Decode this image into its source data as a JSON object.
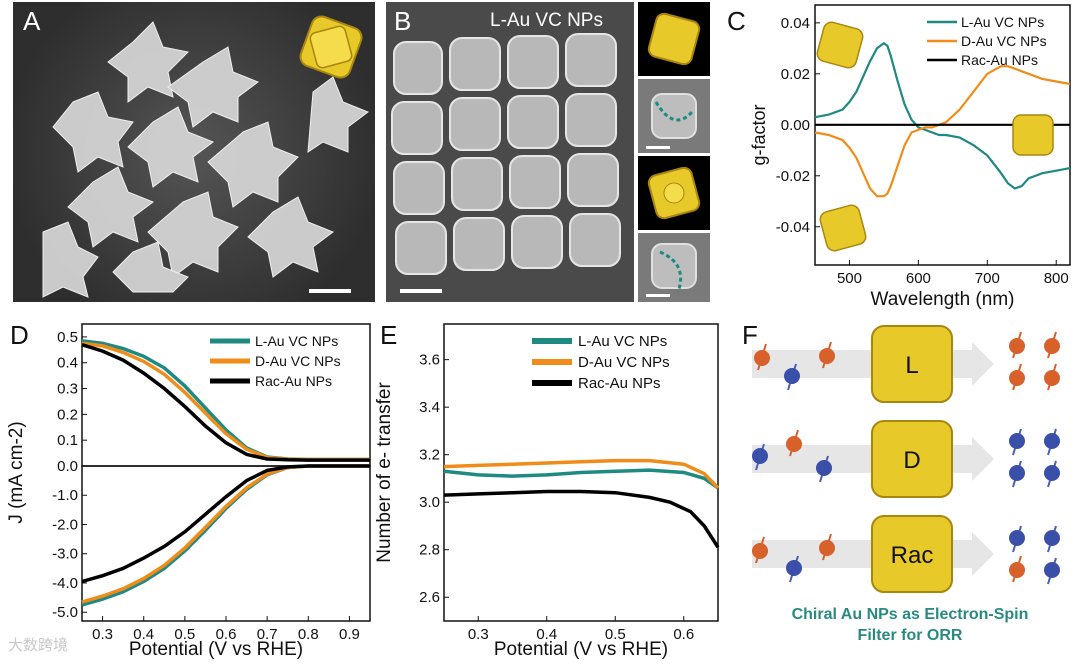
{
  "panels": {
    "A": {
      "label": "A"
    },
    "B": {
      "label": "B",
      "title": "L-Au VC NPs"
    },
    "C": {
      "label": "C"
    },
    "D": {
      "label": "D"
    },
    "E": {
      "label": "E"
    },
    "F": {
      "label": "F"
    }
  },
  "colors": {
    "L": "#1f8a82",
    "D": "#f08c1a",
    "Rac": "#000000",
    "gold": "#e8c92a",
    "caption": "#2a8a80"
  },
  "chart_data": [
    {
      "panel": "C",
      "type": "line",
      "xlabel": "Wavelength (nm)",
      "ylabel": "g-factor",
      "xlim": [
        450,
        820
      ],
      "ylim": [
        -0.055,
        0.047
      ],
      "xticks": [
        500,
        600,
        700,
        800
      ],
      "yticks": [
        0.04,
        0.02,
        0.0,
        -0.02,
        -0.04
      ],
      "ytick_labels": [
        "0.04",
        "0.02",
        "0.00",
        "-0.02",
        "-0.04"
      ],
      "legend": [
        "L-Au VC NPs",
        "D-Au VC NPs",
        "Rac-Au NPs"
      ],
      "series": [
        {
          "name": "L-Au VC NPs",
          "x": [
            450,
            470,
            490,
            500,
            510,
            520,
            530,
            540,
            550,
            555,
            560,
            570,
            580,
            590,
            600,
            610,
            620,
            630,
            640,
            660,
            680,
            700,
            720,
            730,
            740,
            750,
            760,
            780,
            800,
            820
          ],
          "y": [
            0.003,
            0.004,
            0.006,
            0.009,
            0.013,
            0.019,
            0.025,
            0.03,
            0.032,
            0.031,
            0.027,
            0.017,
            0.008,
            0.002,
            -0.001,
            -0.002,
            -0.003,
            -0.004,
            -0.004,
            -0.005,
            -0.008,
            -0.012,
            -0.019,
            -0.023,
            -0.025,
            -0.024,
            -0.021,
            -0.019,
            -0.018,
            -0.017
          ]
        },
        {
          "name": "D-Au VC NPs",
          "x": [
            450,
            470,
            490,
            500,
            510,
            520,
            530,
            540,
            550,
            555,
            560,
            570,
            580,
            590,
            600,
            610,
            620,
            630,
            640,
            660,
            680,
            700,
            720,
            730,
            740,
            750,
            760,
            780,
            800,
            820
          ],
          "y": [
            -0.003,
            -0.004,
            -0.006,
            -0.009,
            -0.013,
            -0.019,
            -0.025,
            -0.028,
            -0.028,
            -0.027,
            -0.024,
            -0.016,
            -0.008,
            -0.003,
            -0.002,
            -0.001,
            -0.001,
            0.0,
            0.001,
            0.006,
            0.013,
            0.02,
            0.023,
            0.023,
            0.022,
            0.021,
            0.02,
            0.018,
            0.017,
            0.016
          ]
        },
        {
          "name": "Rac-Au NPs",
          "x": [
            450,
            820
          ],
          "y": [
            0.0,
            0.0
          ]
        }
      ]
    },
    {
      "panel": "D",
      "type": "line",
      "xlabel": "Potential (V vs RHE)",
      "ylabel": "J (mA cm-2)",
      "xlim": [
        0.25,
        0.95
      ],
      "xticks": [
        0.3,
        0.4,
        0.5,
        0.6,
        0.7,
        0.8,
        0.9
      ],
      "top_ylim": [
        0.0,
        0.55
      ],
      "top_yticks": [
        "0.5",
        "0.4",
        "0.3",
        "0.2",
        "0.1",
        "0.0"
      ],
      "bottom_ylim": [
        -5.3,
        0.0
      ],
      "bottom_yticks": [
        "0.0",
        "-1.0",
        "-2.0",
        "-3.0",
        "-4.0",
        "-5.0"
      ],
      "legend": [
        "L-Au VC NPs",
        "D-Au VC NPs",
        "Rac-Au NPs"
      ],
      "top_series": [
        {
          "name": "L-Au VC NPs",
          "x": [
            0.25,
            0.3,
            0.35,
            0.4,
            0.45,
            0.5,
            0.55,
            0.6,
            0.65,
            0.7,
            0.75,
            0.8,
            0.95
          ],
          "y": [
            0.485,
            0.475,
            0.455,
            0.425,
            0.38,
            0.31,
            0.225,
            0.14,
            0.07,
            0.035,
            0.027,
            0.025,
            0.025
          ]
        },
        {
          "name": "D-Au VC NPs",
          "x": [
            0.25,
            0.3,
            0.35,
            0.4,
            0.45,
            0.5,
            0.55,
            0.6,
            0.65,
            0.7,
            0.75,
            0.8,
            0.95
          ],
          "y": [
            0.475,
            0.465,
            0.44,
            0.405,
            0.355,
            0.285,
            0.205,
            0.125,
            0.065,
            0.033,
            0.026,
            0.025,
            0.025
          ]
        },
        {
          "name": "Rac-Au NPs",
          "x": [
            0.25,
            0.3,
            0.35,
            0.4,
            0.45,
            0.5,
            0.55,
            0.6,
            0.65,
            0.7,
            0.75,
            0.8,
            0.95
          ],
          "y": [
            0.47,
            0.445,
            0.41,
            0.36,
            0.3,
            0.23,
            0.155,
            0.09,
            0.045,
            0.027,
            0.024,
            0.023,
            0.023
          ]
        }
      ],
      "bottom_series": [
        {
          "name": "L-Au VC NPs",
          "x": [
            0.25,
            0.3,
            0.35,
            0.4,
            0.45,
            0.5,
            0.55,
            0.6,
            0.65,
            0.7,
            0.75,
            0.8,
            0.95
          ],
          "y": [
            -4.75,
            -4.55,
            -4.3,
            -3.95,
            -3.5,
            -2.9,
            -2.2,
            -1.45,
            -0.8,
            -0.3,
            -0.05,
            0.0,
            0.0
          ]
        },
        {
          "name": "D-Au VC NPs",
          "x": [
            0.25,
            0.3,
            0.35,
            0.4,
            0.45,
            0.5,
            0.55,
            0.6,
            0.65,
            0.7,
            0.75,
            0.8,
            0.95
          ],
          "y": [
            -4.65,
            -4.45,
            -4.2,
            -3.85,
            -3.4,
            -2.8,
            -2.1,
            -1.38,
            -0.75,
            -0.28,
            -0.05,
            0.0,
            0.0
          ]
        },
        {
          "name": "Rac-Au NPs",
          "x": [
            0.25,
            0.3,
            0.35,
            0.4,
            0.45,
            0.5,
            0.55,
            0.6,
            0.65,
            0.7,
            0.75,
            0.8,
            0.95
          ],
          "y": [
            -3.95,
            -3.75,
            -3.5,
            -3.15,
            -2.75,
            -2.25,
            -1.65,
            -1.05,
            -0.5,
            -0.15,
            -0.03,
            0.0,
            0.0
          ]
        }
      ]
    },
    {
      "panel": "E",
      "type": "line",
      "xlabel": "Potential (V vs RHE)",
      "ylabel": "Number of e- transfer",
      "xlim": [
        0.25,
        0.65
      ],
      "ylim": [
        2.5,
        3.75
      ],
      "xticks": [
        0.3,
        0.4,
        0.5,
        0.6
      ],
      "yticks": [
        2.6,
        2.8,
        3.0,
        3.2,
        3.4,
        3.6
      ],
      "legend": [
        "L-Au VC NPs",
        "D-Au VC NPs",
        "Rac-Au NPs"
      ],
      "series": [
        {
          "name": "L-Au VC NPs",
          "x": [
            0.25,
            0.3,
            0.35,
            0.4,
            0.45,
            0.5,
            0.55,
            0.6,
            0.63,
            0.65
          ],
          "y": [
            3.13,
            3.115,
            3.11,
            3.115,
            3.125,
            3.13,
            3.135,
            3.125,
            3.1,
            3.06
          ]
        },
        {
          "name": "D-Au VC NPs",
          "x": [
            0.25,
            0.3,
            0.35,
            0.4,
            0.45,
            0.5,
            0.55,
            0.6,
            0.63,
            0.65
          ],
          "y": [
            3.15,
            3.155,
            3.16,
            3.165,
            3.17,
            3.175,
            3.175,
            3.16,
            3.12,
            3.06
          ]
        },
        {
          "name": "Rac-Au NPs",
          "x": [
            0.25,
            0.3,
            0.35,
            0.4,
            0.45,
            0.5,
            0.55,
            0.58,
            0.61,
            0.63,
            0.65
          ],
          "y": [
            3.03,
            3.035,
            3.04,
            3.045,
            3.045,
            3.04,
            3.02,
            3.0,
            2.96,
            2.9,
            2.81
          ]
        }
      ]
    }
  ],
  "schematic": {
    "rows": [
      "L",
      "D",
      "Rac"
    ],
    "caption_line1": "Chiral Au NPs as Electron-Spin",
    "caption_line2": "Filter for ORR"
  },
  "watermark": "大数跨境"
}
